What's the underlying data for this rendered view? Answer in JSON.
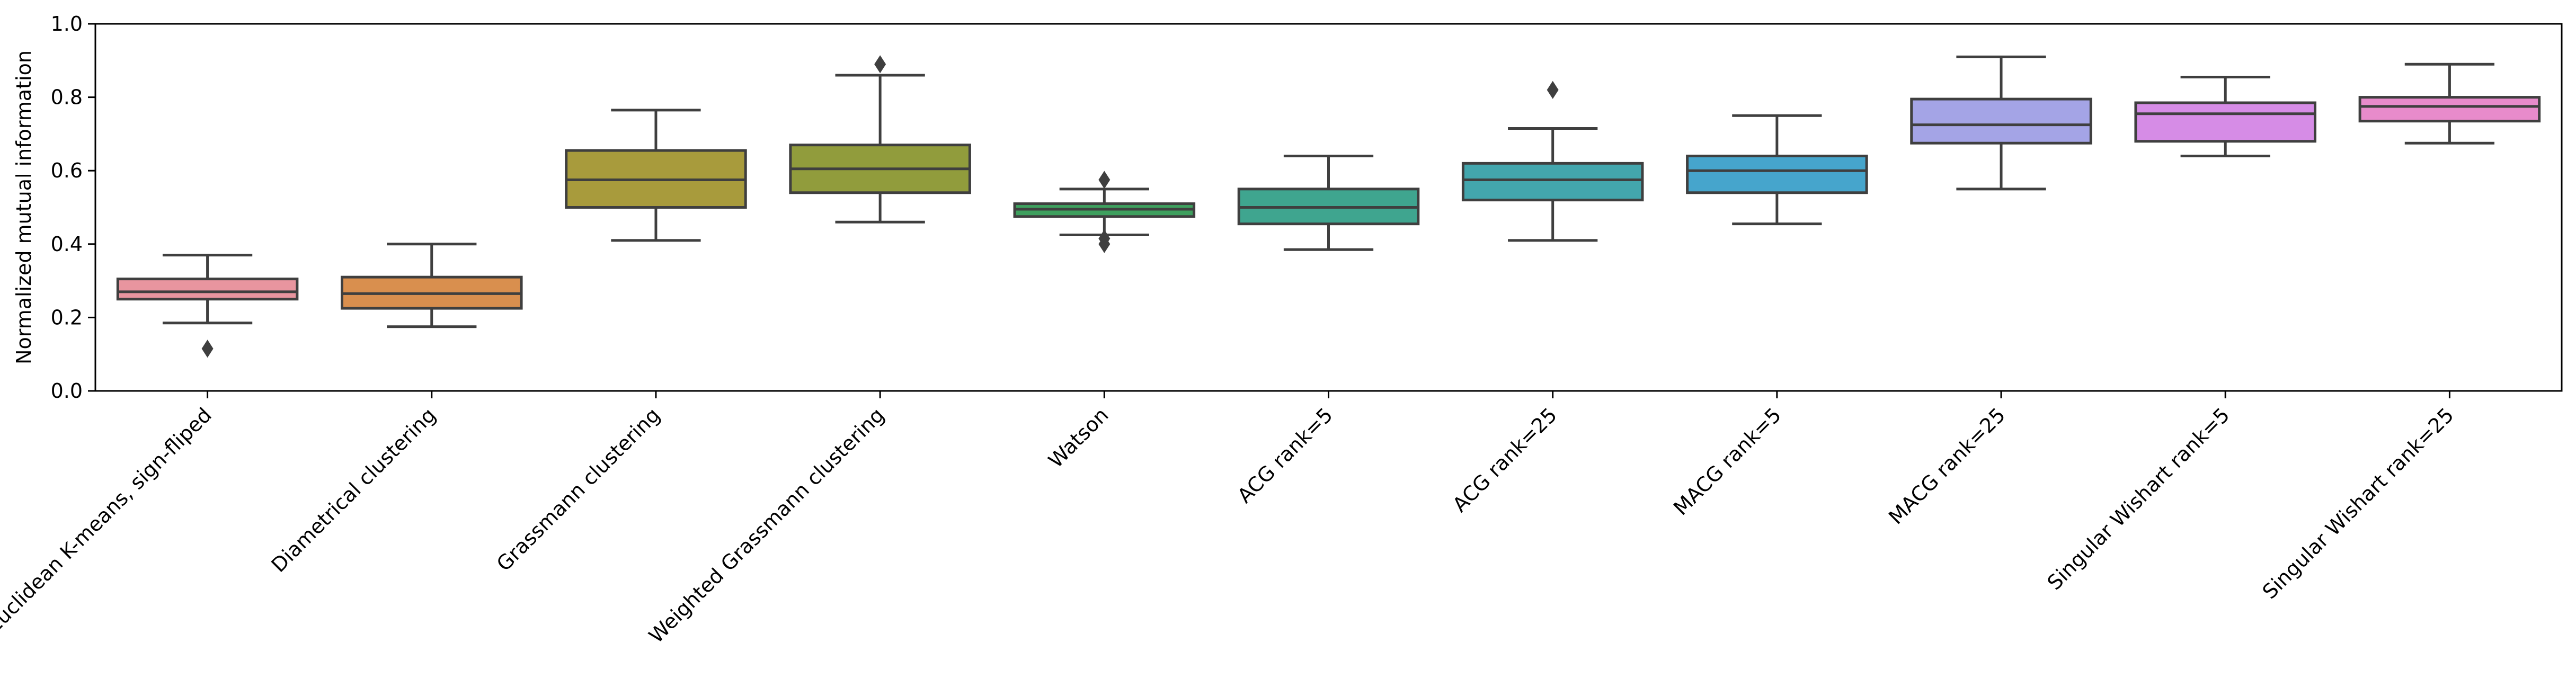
{
  "chart_data": {
    "type": "box",
    "title": "",
    "xlabel": "",
    "ylabel": "Normalized mutual information",
    "ylim": [
      0.0,
      1.0
    ],
    "yticks": [
      "0.0",
      "0.2",
      "0.4",
      "0.6",
      "0.8",
      "1.0"
    ],
    "grid": false,
    "categories": [
      "Euclidean K-means, sign-fliped",
      "Diametrical clustering",
      "Grassmann clustering",
      "Weighted Grassmann clustering",
      "Watson",
      "ACG rank=5",
      "ACG rank=25",
      "MACG rank=5",
      "MACG rank=25",
      "Singular Wishart rank=5",
      "Singular Wishart rank=25"
    ],
    "colors": [
      "#e8959f",
      "#d98f4e",
      "#a89b3c",
      "#919c3c",
      "#3ea05e",
      "#3fa58f",
      "#43a6ad",
      "#46a5cc",
      "#a4a4e6",
      "#d68ce6",
      "#e88bcb"
    ],
    "boxes": [
      {
        "whisker_low": 0.185,
        "q1": 0.25,
        "median": 0.27,
        "q3": 0.305,
        "whisker_high": 0.37,
        "outliers": [
          0.115
        ]
      },
      {
        "whisker_low": 0.175,
        "q1": 0.225,
        "median": 0.265,
        "q3": 0.31,
        "whisker_high": 0.4,
        "outliers": []
      },
      {
        "whisker_low": 0.41,
        "q1": 0.5,
        "median": 0.575,
        "q3": 0.655,
        "whisker_high": 0.765,
        "outliers": []
      },
      {
        "whisker_low": 0.46,
        "q1": 0.54,
        "median": 0.605,
        "q3": 0.67,
        "whisker_high": 0.86,
        "outliers": [
          0.89
        ]
      },
      {
        "whisker_low": 0.425,
        "q1": 0.475,
        "median": 0.495,
        "q3": 0.51,
        "whisker_high": 0.55,
        "outliers": [
          0.575,
          0.415,
          0.4
        ]
      },
      {
        "whisker_low": 0.385,
        "q1": 0.455,
        "median": 0.5,
        "q3": 0.55,
        "whisker_high": 0.64,
        "outliers": []
      },
      {
        "whisker_low": 0.41,
        "q1": 0.52,
        "median": 0.575,
        "q3": 0.62,
        "whisker_high": 0.715,
        "outliers": [
          0.82
        ]
      },
      {
        "whisker_low": 0.455,
        "q1": 0.54,
        "median": 0.6,
        "q3": 0.64,
        "whisker_high": 0.75,
        "outliers": []
      },
      {
        "whisker_low": 0.55,
        "q1": 0.675,
        "median": 0.725,
        "q3": 0.795,
        "whisker_high": 0.91,
        "outliers": []
      },
      {
        "whisker_low": 0.64,
        "q1": 0.68,
        "median": 0.755,
        "q3": 0.785,
        "whisker_high": 0.855,
        "outliers": []
      },
      {
        "whisker_low": 0.675,
        "q1": 0.735,
        "median": 0.775,
        "q3": 0.8,
        "whisker_high": 0.89,
        "outliers": []
      }
    ]
  }
}
